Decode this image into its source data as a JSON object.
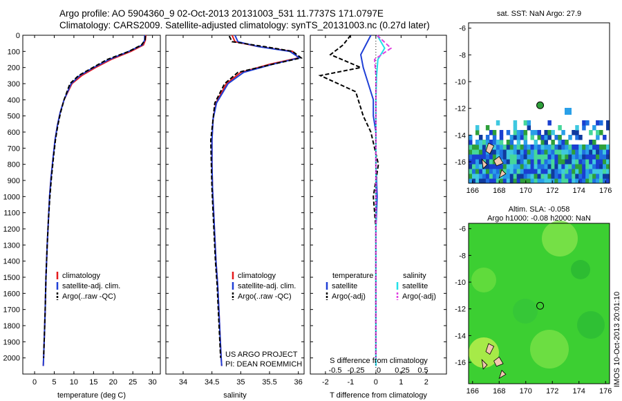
{
  "header": {
    "line1": "Argo profile: AO 5904360_9 02-Oct-2013 20131003_531 11.7737S 171.0797E",
    "line2": "Climatology: CARS2009. Satellite-adjusted climatology: synTS_20131003.nc (0.27d later)"
  },
  "panels": {
    "depth_ticks": [
      "0",
      "100",
      "200",
      "300",
      "400",
      "500",
      "600",
      "700",
      "800",
      "900",
      "1000",
      "1100",
      "1200",
      "1300",
      "1400",
      "1500",
      "1600",
      "1700",
      "1800",
      "1900",
      "2000"
    ],
    "temperature": {
      "xlabel": "temperature (deg C)",
      "xticks": [
        "0",
        "5",
        "10",
        "15",
        "20",
        "25",
        "30"
      ],
      "legend": [
        "climatology",
        "satellite-adj. clim.",
        "Argo(..raw -QC)"
      ]
    },
    "salinity": {
      "xlabel": "salinity",
      "xticks": [
        "34",
        "34.5",
        "35",
        "35.5",
        "36"
      ],
      "legend": [
        "climatology",
        "satellite-adj. clim.",
        "Argo(..raw -QC)"
      ],
      "credit1": "US ARGO PROJECT",
      "credit2": "PI: DEAN ROEMMICH"
    },
    "difference": {
      "top_label": "S difference from climatology",
      "top_ticks": [
        "-0.5",
        "-0.25",
        "0",
        "0.25",
        "0.5"
      ],
      "xlabel": "T difference from climatology",
      "xticks": [
        "-2",
        "-1",
        "0",
        "1",
        "2"
      ],
      "legend_t_title": "temperature",
      "legend_s_title": "salinity",
      "legend_t": [
        "satellite",
        "Argo(-adj)"
      ],
      "legend_s": [
        "satellite",
        "Argo(-adj)"
      ]
    }
  },
  "maps": {
    "sst_title": "sat. SST: NaN Argo: 27.9",
    "sla_title1": "Altim. SLA: -0.058",
    "sla_title2": "Argo h1000: -0.08 h2000: NaN",
    "lon_ticks": [
      "166",
      "168",
      "170",
      "172",
      "174",
      "176"
    ],
    "lat_ticks": [
      "-6",
      "-8",
      "-10",
      "-12",
      "-14",
      "-16"
    ],
    "footer": "IMOS 10-Oct-2013 20:01:10"
  },
  "colors": {
    "climatology": "#e41a1c",
    "satellite": "#1f3fd6",
    "argo": "#000000",
    "sat_s": "#22e0e8",
    "argo_s": "#e040e0"
  },
  "chart_data": [
    {
      "type": "line",
      "title": "",
      "xlabel": "temperature (deg C)",
      "ylabel": "",
      "xlim": [
        -3,
        32
      ],
      "ylim": [
        2100,
        0
      ],
      "series": [
        {
          "name": "climatology",
          "x": [
            28.3,
            28.2,
            27.7,
            24.5,
            19.5,
            15.5,
            12,
            9.5,
            7.5,
            6.5,
            5.8,
            5.2,
            4.7,
            4.2,
            3.8,
            3.5,
            3.2,
            2.9,
            2.7,
            2.5,
            2.3,
            2.2
          ],
          "y": [
            0,
            30,
            60,
            100,
            150,
            200,
            250,
            300,
            400,
            480,
            560,
            650,
            760,
            880,
            1000,
            1150,
            1300,
            1500,
            1700,
            1850,
            2000,
            2050
          ]
        },
        {
          "name": "satellite-adj. clim.",
          "x": [
            28.0,
            28.0,
            27.4,
            24.0,
            19.0,
            15.0,
            11.5,
            9.3,
            7.5,
            6.5,
            5.8,
            5.2,
            4.7,
            4.2,
            3.8,
            3.5,
            3.2,
            2.9,
            2.7,
            2.5,
            2.3,
            2.2
          ],
          "y": [
            0,
            30,
            60,
            100,
            150,
            200,
            250,
            300,
            400,
            480,
            560,
            650,
            760,
            880,
            1000,
            1150,
            1300,
            1500,
            1700,
            1850,
            2000,
            2050
          ]
        },
        {
          "name": "Argo(..raw -QC)",
          "x": [
            28.2,
            28.1,
            27.2,
            24.0,
            18.5,
            14.8,
            11.2,
            9.0,
            7.5,
            6.6,
            5.9,
            5.3,
            4.8,
            4.3,
            3.9,
            3.5,
            3.2,
            2.9,
            2.7,
            2.5,
            2.3
          ],
          "y": [
            5,
            30,
            60,
            100,
            150,
            200,
            250,
            300,
            400,
            480,
            560,
            650,
            760,
            880,
            1000,
            1150,
            1300,
            1500,
            1700,
            1850,
            2000
          ]
        }
      ]
    },
    {
      "type": "line",
      "title": "",
      "xlabel": "salinity",
      "ylabel": "",
      "xlim": [
        33.7,
        36.1
      ],
      "ylim": [
        2100,
        0
      ],
      "series": [
        {
          "name": "climatology",
          "x": [
            34.85,
            34.9,
            35.3,
            35.9,
            36.0,
            35.5,
            35.0,
            34.75,
            34.57,
            34.52,
            34.5,
            34.5,
            34.51,
            34.53,
            34.55,
            34.57,
            34.6,
            34.62,
            34.64,
            34.66,
            34.67
          ],
          "y": [
            0,
            40,
            70,
            100,
            140,
            180,
            230,
            300,
            420,
            520,
            650,
            800,
            950,
            1100,
            1250,
            1400,
            1550,
            1700,
            1850,
            2000,
            2050
          ]
        },
        {
          "name": "satellite-adj. clim.",
          "x": [
            34.9,
            34.95,
            35.3,
            35.85,
            36.02,
            35.55,
            35.05,
            34.78,
            34.58,
            34.52,
            34.5,
            34.5,
            34.51,
            34.53,
            34.55,
            34.57,
            34.6,
            34.62,
            34.64,
            34.66,
            34.67
          ],
          "y": [
            0,
            40,
            70,
            100,
            140,
            180,
            230,
            300,
            420,
            520,
            650,
            800,
            950,
            1100,
            1250,
            1400,
            1550,
            1700,
            1850,
            2000,
            2050
          ]
        },
        {
          "name": "Argo(..raw -QC)",
          "x": [
            34.8,
            34.85,
            35.4,
            35.9,
            36.05,
            35.55,
            34.95,
            34.72,
            34.55,
            34.52,
            34.48,
            34.49,
            34.5,
            34.52,
            34.54,
            34.56,
            34.59,
            34.61,
            34.63,
            34.65
          ],
          "y": [
            5,
            40,
            70,
            100,
            140,
            180,
            230,
            300,
            420,
            520,
            650,
            800,
            950,
            1100,
            1250,
            1400,
            1550,
            1700,
            1850,
            2000
          ]
        }
      ]
    },
    {
      "type": "line",
      "title": "",
      "xlabel": "T difference from climatology",
      "ylabel": "",
      "xlim": [
        -2.6,
        2.8
      ],
      "ylim": [
        2100,
        0
      ],
      "series": [
        {
          "name": "temperature satellite",
          "x": [
            -0.2,
            -0.4,
            -0.6,
            -0.5,
            -0.3,
            -0.1,
            -0.1,
            0,
            0,
            0.05,
            0,
            0,
            0,
            0
          ],
          "y": [
            0,
            60,
            120,
            200,
            300,
            400,
            500,
            600,
            800,
            1000,
            1200,
            1500,
            1800,
            2050
          ]
        },
        {
          "name": "temperature Argo(-adj)",
          "x": [
            -1.0,
            -1.3,
            -1.8,
            -0.6,
            -2.2,
            -0.8,
            -0.5,
            -0.2,
            0.1,
            -0.1,
            0,
            0,
            0,
            0
          ],
          "y": [
            0,
            60,
            120,
            200,
            250,
            350,
            500,
            600,
            800,
            1000,
            1200,
            1500,
            1800,
            2000
          ]
        },
        {
          "name": "salinity satellite",
          "x": [
            0.05,
            0.35,
            0.08,
            0.03,
            0,
            0,
            0,
            0,
            0,
            0
          ],
          "y": [
            0,
            80,
            150,
            250,
            400,
            600,
            800,
            1200,
            1600,
            2050
          ]
        },
        {
          "name": "salinity Argo(-adj)",
          "x": [
            0.05,
            0.6,
            -0.05,
            0,
            0,
            0,
            0,
            0,
            0,
            0
          ],
          "y": [
            0,
            80,
            150,
            250,
            400,
            600,
            800,
            1200,
            1600,
            2000
          ]
        }
      ]
    }
  ]
}
